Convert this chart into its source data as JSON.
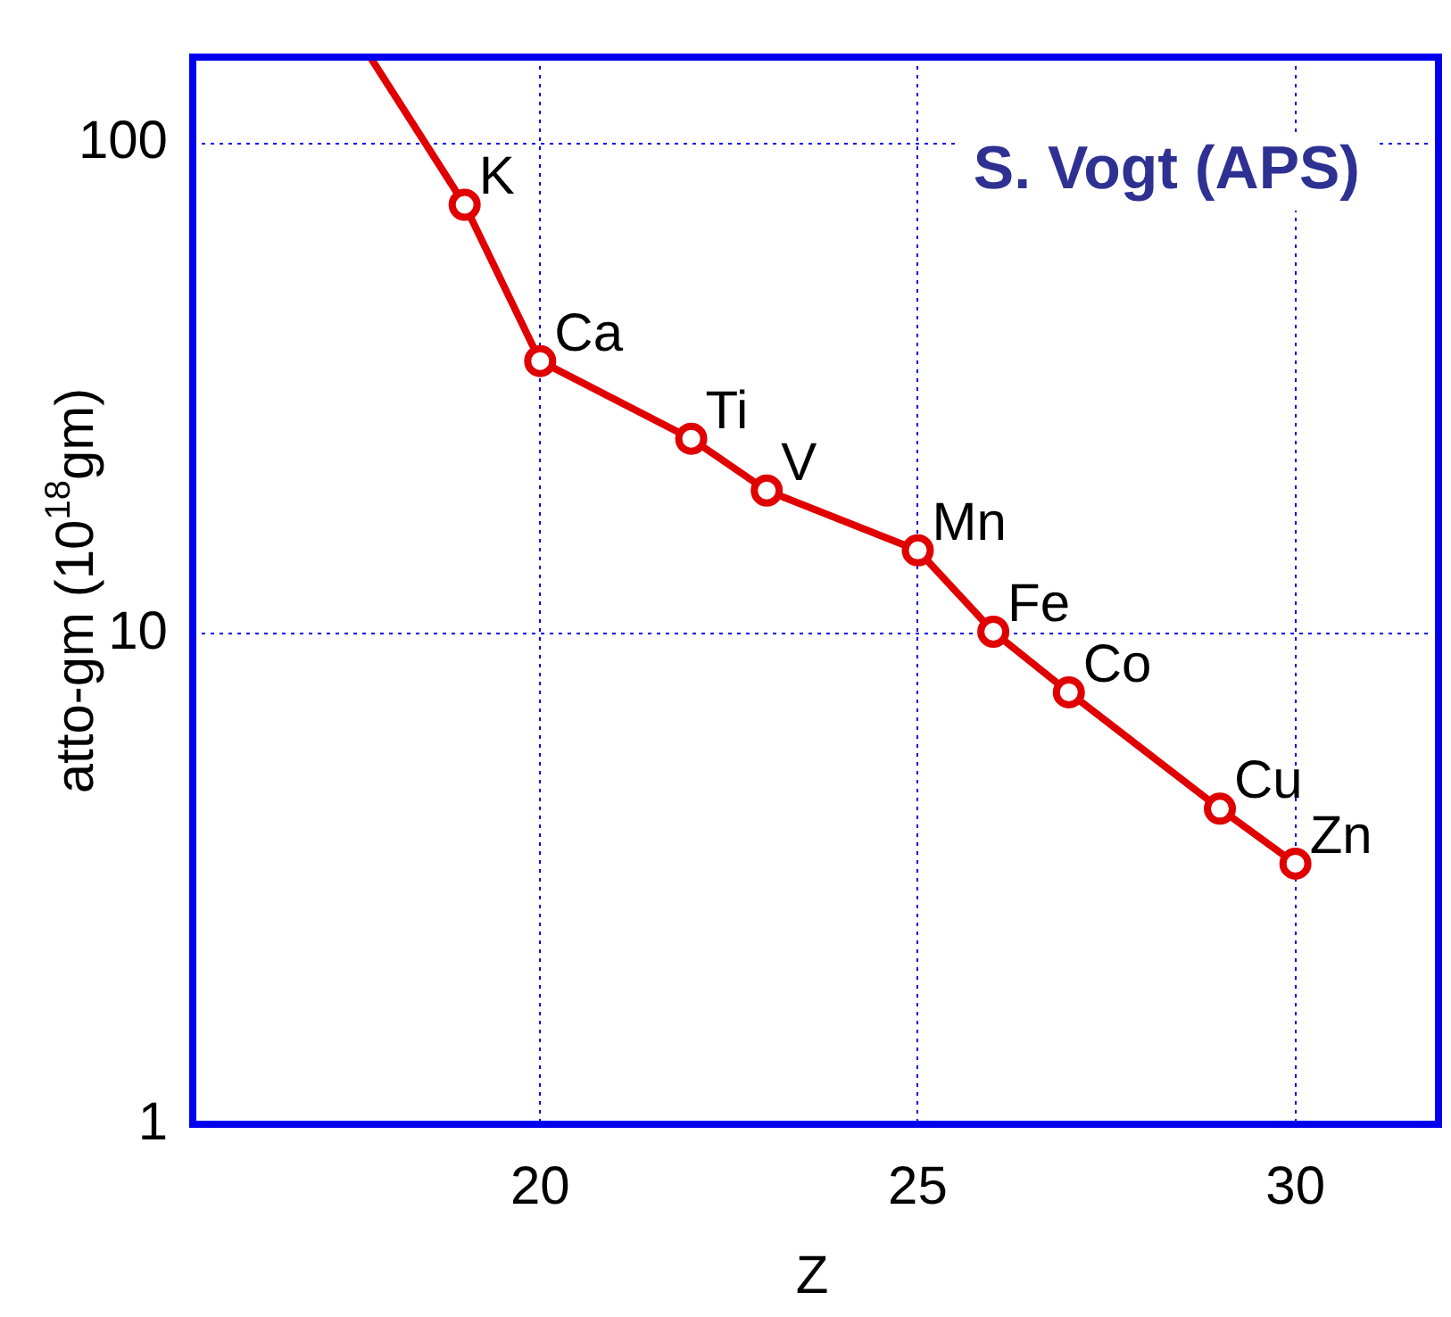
{
  "chart_data": {
    "type": "line",
    "xlabel": "Z",
    "ylabel": "atto-gm (10$^{18}$gm)",
    "x": [
      17.75,
      19,
      20,
      22,
      23,
      25,
      26,
      27,
      29,
      30
    ],
    "series": [
      {
        "color": "#e00000",
        "values": [
          150,
          75,
          36,
          25,
          19.6,
          14.8,
          10.1,
          7.6,
          4.4,
          3.4
        ]
      }
    ],
    "annotations": [
      "S. Vogt (APS)",
      {
        "text": "K",
        "x": 19,
        "y": 75
      },
      {
        "text": "Ca",
        "x": 20,
        "y": 36
      },
      {
        "text": "Ti",
        "x": 22,
        "y": 25
      },
      {
        "text": "V",
        "x": 23,
        "y": 19.6
      },
      {
        "text": "Mn",
        "x": 25,
        "y": 14.8
      },
      {
        "text": "Fe",
        "x": 26,
        "y": 10.1
      },
      {
        "text": "Co",
        "x": 27,
        "y": 7.6
      },
      {
        "text": "Cu",
        "x": 29,
        "y": 4.4
      },
      {
        "text": "Zn",
        "x": 30,
        "y": 3.4
      }
    ],
    "xlim": [
      15.4,
      31.8
    ],
    "xticks": [
      20,
      25,
      30
    ],
    "ylim": [
      1,
      150
    ],
    "yticks": [
      1,
      10,
      100
    ],
    "log": "y",
    "grid": true,
    "marker": "circle",
    "line_style": "solid",
    "legend": false
  }
}
